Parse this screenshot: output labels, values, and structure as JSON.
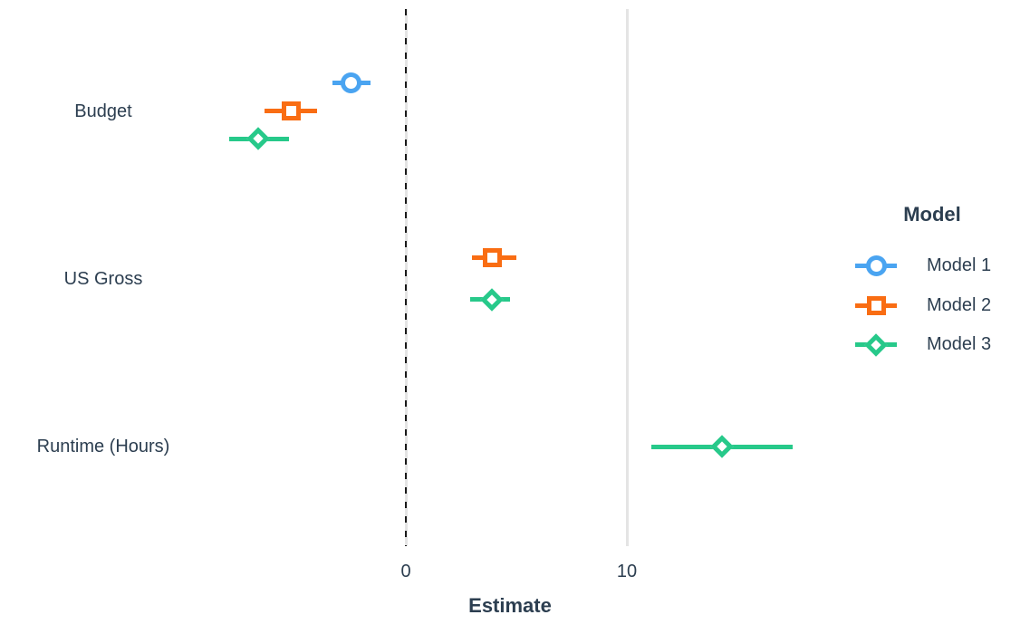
{
  "chart_data": {
    "type": "scatter",
    "variant": "dot-and-whisker coefficient plot (point estimates with confidence intervals)",
    "title": "",
    "xlabel": "Estimate",
    "ylabel": "",
    "x_ticks": [
      0,
      10
    ],
    "x_range": [
      -9,
      19
    ],
    "grid": "vertical major gridlines only",
    "gridlines_x": [
      0,
      10
    ],
    "reference_line": {
      "x": 0,
      "style": "dashed",
      "color": "#1a1a1a"
    },
    "terms": [
      "Budget",
      "US Gross",
      "Runtime (Hours)"
    ],
    "models": [
      {
        "label": "Model 1",
        "shape": "circle",
        "color": "#4aa4f1"
      },
      {
        "label": "Model 2",
        "shape": "square",
        "color": "#f96d13"
      },
      {
        "label": "Model 3",
        "shape": "diamond",
        "color": "#27c98a"
      }
    ],
    "estimates": [
      {
        "term": "Budget",
        "model": "Model 1",
        "estimate": -2.5,
        "ci_low": -3.3,
        "ci_high": -1.6
      },
      {
        "term": "Budget",
        "model": "Model 2",
        "estimate": -5.2,
        "ci_low": -6.4,
        "ci_high": -4.0
      },
      {
        "term": "Budget",
        "model": "Model 3",
        "estimate": -6.7,
        "ci_low": -8.0,
        "ci_high": -5.3
      },
      {
        "term": "US Gross",
        "model": "Model 2",
        "estimate": 3.9,
        "ci_low": 3.0,
        "ci_high": 5.0
      },
      {
        "term": "US Gross",
        "model": "Model 3",
        "estimate": 3.9,
        "ci_low": 2.9,
        "ci_high": 4.7
      },
      {
        "term": "Runtime (Hours)",
        "model": "Model 3",
        "estimate": 14.3,
        "ci_low": 11.1,
        "ci_high": 17.5
      }
    ],
    "legend": {
      "title": "Model",
      "position": "right"
    },
    "colors": {
      "text": "#2c3e50",
      "grid": "#e4e4e4",
      "reference_line": "#1a1a1a",
      "background": "#ffffff"
    }
  }
}
